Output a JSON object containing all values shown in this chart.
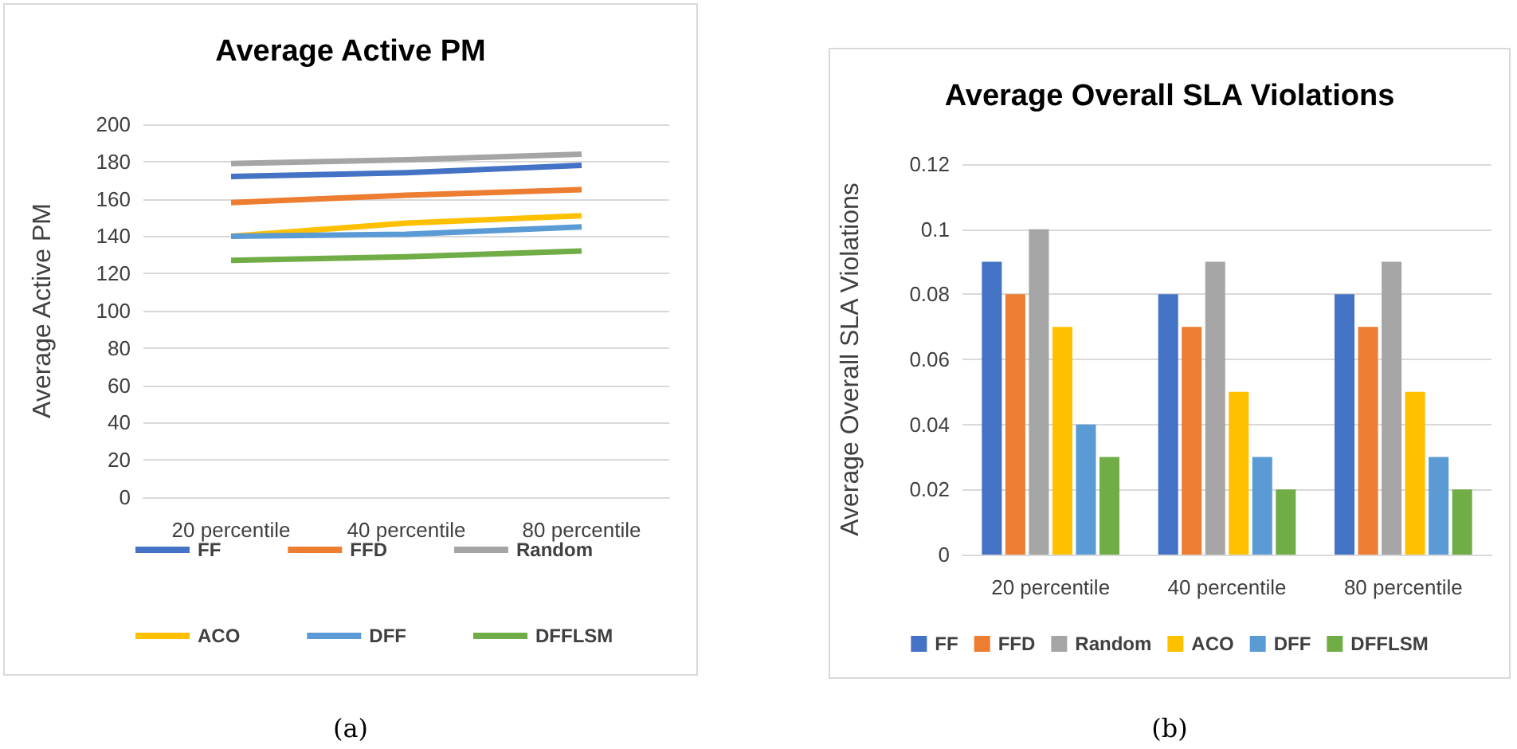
{
  "chart_data": [
    {
      "type": "line",
      "title": "Average Active PM",
      "ylabel": "Average Active PM",
      "categories": [
        "20 percentile",
        "40 percentile",
        "80 percentile"
      ],
      "series": [
        {
          "name": "FF",
          "color": "#4472c4",
          "values": [
            172,
            174,
            178
          ]
        },
        {
          "name": "FFD",
          "color": "#ed7d31",
          "values": [
            158,
            162,
            165
          ]
        },
        {
          "name": "Random",
          "color": "#a5a5a5",
          "values": [
            179,
            181,
            184
          ]
        },
        {
          "name": "ACO",
          "color": "#ffc000",
          "values": [
            140,
            147,
            151
          ]
        },
        {
          "name": "DFF",
          "color": "#5b9bd5",
          "values": [
            140,
            141,
            145
          ]
        },
        {
          "name": "DFFLSM",
          "color": "#70ad47",
          "values": [
            127,
            129,
            132
          ]
        }
      ],
      "ylim": [
        0,
        200
      ],
      "yticks": [
        0,
        20,
        40,
        60,
        80,
        100,
        120,
        140,
        160,
        180,
        200
      ],
      "grid": "y",
      "legend": "bottom",
      "marker": "none",
      "annotations": [
        "(a)"
      ]
    },
    {
      "type": "bar",
      "title": "Average Overall SLA Violations",
      "ylabel": "Average Overall SLA Violations",
      "categories": [
        "20 percentile",
        "40 percentile",
        "80 percentile"
      ],
      "series": [
        {
          "name": "FF",
          "color": "#4472c4",
          "values": [
            0.09,
            0.08,
            0.08
          ]
        },
        {
          "name": "FFD",
          "color": "#ed7d31",
          "values": [
            0.08,
            0.07,
            0.07
          ]
        },
        {
          "name": "Random",
          "color": "#a5a5a5",
          "values": [
            0.1,
            0.09,
            0.09
          ]
        },
        {
          "name": "ACO",
          "color": "#ffc000",
          "values": [
            0.07,
            0.05,
            0.05
          ]
        },
        {
          "name": "DFF",
          "color": "#5b9bd5",
          "values": [
            0.04,
            0.03,
            0.03
          ]
        },
        {
          "name": "DFFLSM",
          "color": "#70ad47",
          "values": [
            0.03,
            0.02,
            0.02
          ]
        }
      ],
      "ylim": [
        0,
        0.12
      ],
      "yticks": [
        0,
        0.02,
        0.04,
        0.06,
        0.08,
        0.1,
        0.12
      ],
      "grid": "y",
      "legend": "bottom",
      "annotations": [
        "(b)"
      ]
    }
  ]
}
